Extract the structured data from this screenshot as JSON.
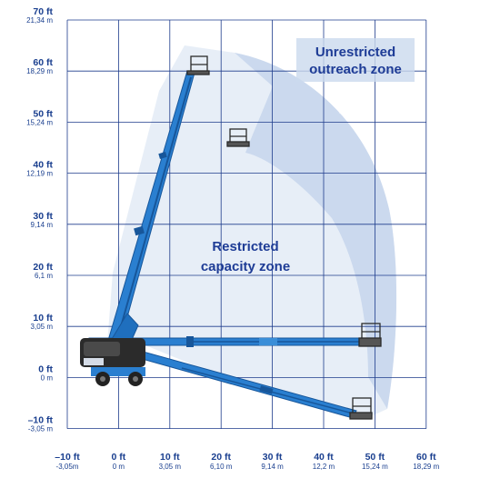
{
  "colors": {
    "grid": "#1e3c8c",
    "text": "#1a3f8f",
    "zone_label": "#1e3c96",
    "outer_zone": "#e7eef7",
    "inner_zone": "#cbd9ee",
    "boom": "#2a7fd0",
    "boom_dark": "#17569a",
    "machine_dark": "#2b2b2b"
  },
  "chart_data": {
    "type": "diagram",
    "x_ticks": [
      {
        "value": -10,
        "ft": "–10 ft",
        "m": "-3,05m"
      },
      {
        "value": 0,
        "ft": "0 ft",
        "m": "0 m"
      },
      {
        "value": 10,
        "ft": "10 ft",
        "m": "3,05 m"
      },
      {
        "value": 20,
        "ft": "20 ft",
        "m": "6,10 m"
      },
      {
        "value": 30,
        "ft": "30 ft",
        "m": "9,14 m"
      },
      {
        "value": 40,
        "ft": "40 ft",
        "m": "12,2 m"
      },
      {
        "value": 50,
        "ft": "50 ft",
        "m": "15,24 m"
      },
      {
        "value": 60,
        "ft": "60 ft",
        "m": "18,29 m"
      }
    ],
    "y_ticks": [
      {
        "value": 70,
        "ft": "70 ft",
        "m": "21,34 m"
      },
      {
        "value": 60,
        "ft": "60 ft",
        "m": "18,29 m"
      },
      {
        "value": 50,
        "ft": "50 ft",
        "m": "15,24 m"
      },
      {
        "value": 40,
        "ft": "40 ft",
        "m": "12,19 m"
      },
      {
        "value": 30,
        "ft": "30 ft",
        "m": "9,14 m"
      },
      {
        "value": 20,
        "ft": "20 ft",
        "m": "6,1 m"
      },
      {
        "value": 10,
        "ft": "10 ft",
        "m": "3,05 m"
      },
      {
        "value": 0,
        "ft": "0 ft",
        "m": "0 m"
      },
      {
        "value": -10,
        "ft": "–10 ft",
        "m": "-3,05 m"
      }
    ],
    "xlim": [
      -10,
      60
    ],
    "ylim": [
      -10,
      70
    ],
    "grid": true,
    "zones": [
      {
        "name": "unrestricted",
        "lines": [
          "Unrestricted",
          "outreach zone"
        ]
      },
      {
        "name": "restricted",
        "lines": [
          "Restricted",
          "capacity zone"
        ]
      }
    ]
  }
}
